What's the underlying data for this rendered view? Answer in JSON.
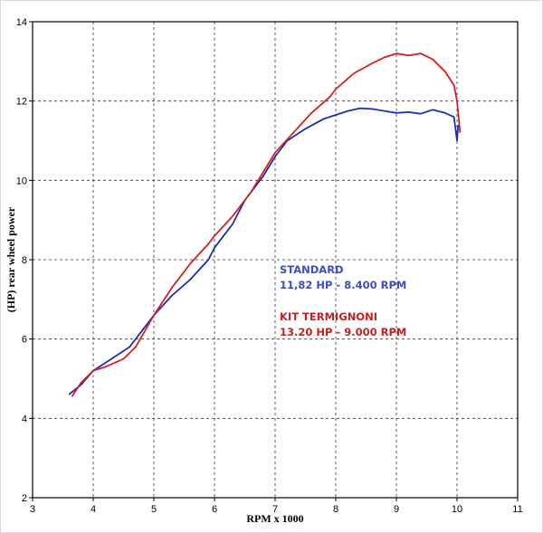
{
  "chart_data": {
    "type": "line",
    "xlabel": "RPM x 1000",
    "ylabel": "(HP) rear wheel power",
    "xlim": [
      3,
      11
    ],
    "ylim": [
      2,
      14
    ],
    "xticks": [
      "3",
      "4",
      "5",
      "6",
      "7",
      "8",
      "9",
      "10",
      "11"
    ],
    "yticks": [
      "2",
      "4",
      "6",
      "8",
      "10",
      "12",
      "14"
    ],
    "grid": true,
    "series": [
      {
        "name": "STANDARD",
        "color": "#1a2fb8",
        "x": [
          3.6,
          3.8,
          4.0,
          4.3,
          4.6,
          4.8,
          5.0,
          5.3,
          5.6,
          5.9,
          6.0,
          6.3,
          6.5,
          6.8,
          7.0,
          7.2,
          7.5,
          7.8,
          8.0,
          8.2,
          8.4,
          8.6,
          8.8,
          9.0,
          9.2,
          9.4,
          9.6,
          9.8,
          9.95,
          10.0,
          10.02
        ],
        "y": [
          4.6,
          4.85,
          5.2,
          5.5,
          5.8,
          6.2,
          6.6,
          7.1,
          7.5,
          8.0,
          8.3,
          8.9,
          9.5,
          10.1,
          10.6,
          11.0,
          11.3,
          11.55,
          11.65,
          11.75,
          11.82,
          11.8,
          11.75,
          11.7,
          11.72,
          11.68,
          11.78,
          11.7,
          11.6,
          11.0,
          11.4
        ]
      },
      {
        "name": "KIT TERMIGNONI",
        "color": "#d42020",
        "x": [
          3.65,
          3.8,
          4.0,
          4.2,
          4.5,
          4.7,
          5.0,
          5.3,
          5.6,
          5.9,
          6.0,
          6.3,
          6.6,
          6.8,
          7.0,
          7.3,
          7.6,
          7.9,
          8.0,
          8.3,
          8.6,
          8.8,
          9.0,
          9.2,
          9.4,
          9.6,
          9.8,
          9.95,
          10.0,
          10.05
        ],
        "y": [
          4.55,
          4.9,
          5.2,
          5.3,
          5.5,
          5.8,
          6.6,
          7.3,
          7.9,
          8.4,
          8.6,
          9.1,
          9.7,
          10.2,
          10.7,
          11.2,
          11.7,
          12.1,
          12.3,
          12.7,
          12.95,
          13.1,
          13.2,
          13.15,
          13.2,
          13.05,
          12.75,
          12.4,
          12.0,
          11.2
        ]
      }
    ],
    "annotations": [
      {
        "series": "STANDARD",
        "lines": [
          "STANDARD",
          "11,82 HP - 8.400 RPM"
        ],
        "color": "#3a4fc0"
      },
      {
        "series": "KIT TERMIGNONI",
        "lines": [
          "KIT TERMIGNONI",
          "13.20 HP - 9.000 RPM"
        ],
        "color": "#c82020"
      }
    ]
  }
}
